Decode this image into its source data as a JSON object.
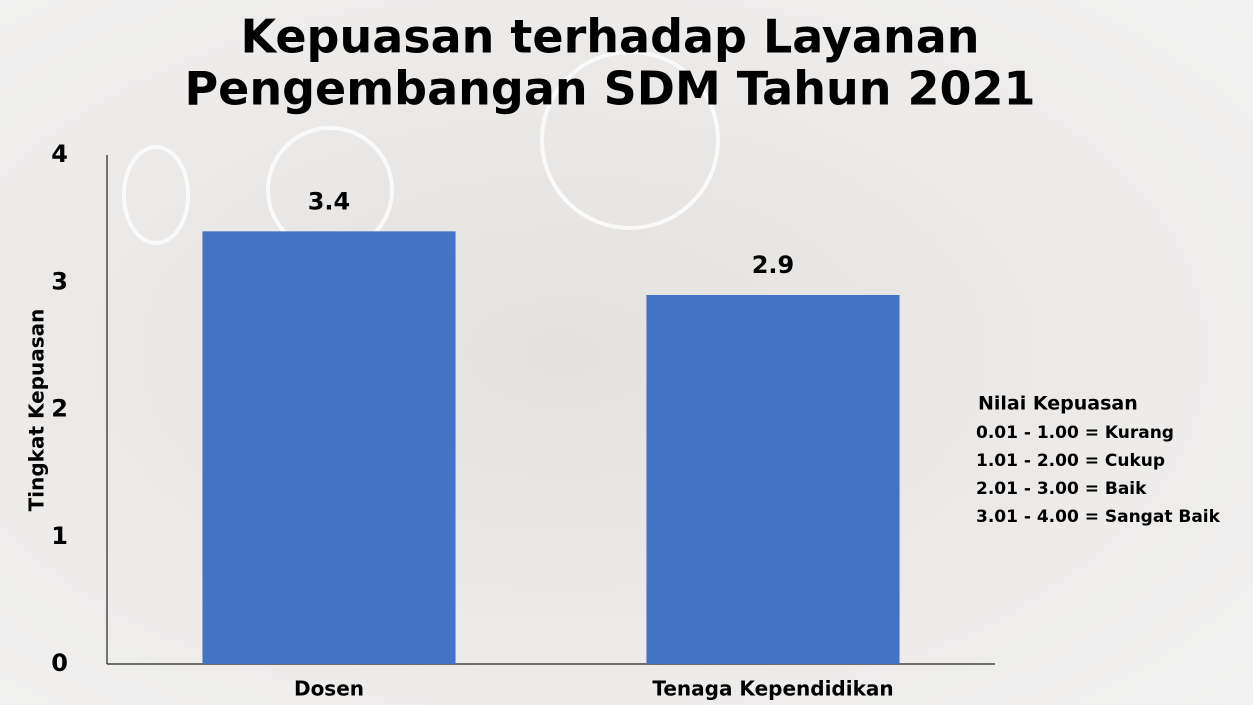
{
  "chart_data": {
    "type": "bar",
    "title": [
      "Kepuasan terhadap Layanan",
      "Pengembangan SDM  Tahun 2021"
    ],
    "y_label": "Tingkat Kepuasan",
    "categories": [
      "Dosen",
      "Tenaga Kependidikan"
    ],
    "values": [
      3.4,
      2.9
    ],
    "color": "#4472c4",
    "ylim": [
      0,
      4
    ],
    "yticks": [
      0,
      1,
      2,
      3,
      4
    ],
    "grid": false,
    "annotation": {
      "title": "Nilai Kepuasan",
      "lines": [
        "0.01 - 1.00 = Kurang",
        "1.01 - 2.00 = Cukup",
        "2.01 - 3.00 = Baik",
        "3.01 - 4.00 = Sangat Baik"
      ]
    }
  }
}
